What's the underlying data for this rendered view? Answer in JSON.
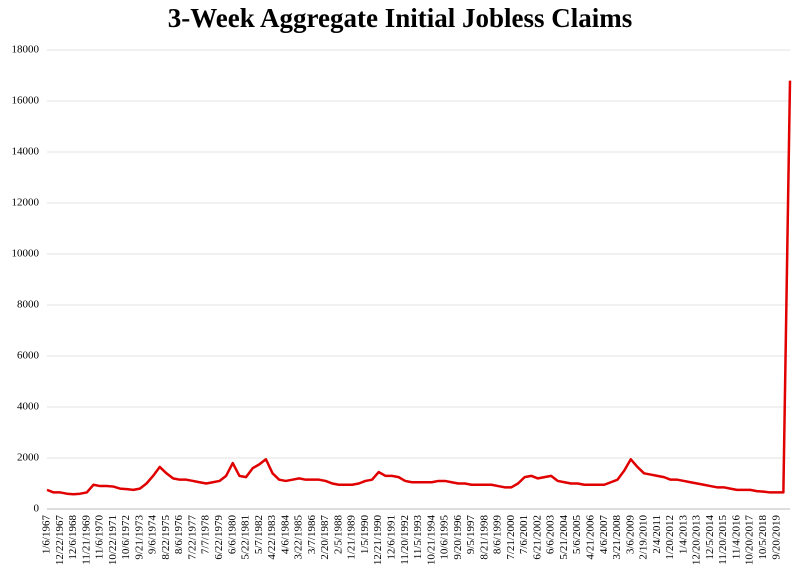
{
  "chart_data": {
    "type": "line",
    "title": "3-Week Aggregate Initial Jobless Claims",
    "categories": [
      "1/6/1967",
      null,
      "12/22/1967",
      null,
      "12/6/1968",
      null,
      "11/21/1969",
      null,
      "11/6/1970",
      null,
      "10/22/1971",
      null,
      "10/6/1972",
      null,
      "9/21/1973",
      null,
      "9/6/1974",
      null,
      "8/22/1975",
      null,
      "8/6/1976",
      null,
      "7/22/1977",
      null,
      "7/7/1978",
      null,
      "6/22/1979",
      null,
      "6/6/1980",
      null,
      "5/22/1981",
      null,
      "5/7/1982",
      null,
      "4/22/1983",
      null,
      "4/6/1984",
      null,
      "3/22/1985",
      null,
      "3/7/1986",
      null,
      "2/20/1987",
      null,
      "2/5/1988",
      null,
      "1/21/1989",
      null,
      "1/5/1990",
      null,
      "12/21/1990",
      null,
      "12/6/1991",
      null,
      "11/20/1992",
      null,
      "11/5/1993",
      null,
      "10/21/1994",
      null,
      "10/6/1995",
      null,
      "9/20/1996",
      null,
      "9/5/1997",
      null,
      "8/21/1998",
      null,
      "8/6/1999",
      null,
      "7/21/2000",
      null,
      "7/6/2001",
      null,
      "6/21/2002",
      null,
      "6/6/2003",
      null,
      "5/21/2004",
      null,
      "5/6/2005",
      null,
      "4/21/2006",
      null,
      "4/6/2007",
      null,
      "3/21/2008",
      null,
      "3/6/2009",
      null,
      "2/19/2010",
      null,
      "2/4/2011",
      null,
      "1/20/2012",
      null,
      "1/4/2013",
      null,
      "12/20/2013",
      null,
      "12/5/2014",
      null,
      "11/20/2015",
      null,
      "11/4/2016",
      null,
      "10/20/2017",
      null,
      "10/5/2018",
      null,
      "9/20/2019",
      null,
      null
    ],
    "series": [
      {
        "name": "3-Week Aggregate Initial Jobless Claims",
        "color": "#e00000",
        "values": [
          750,
          650,
          650,
          600,
          580,
          600,
          650,
          950,
          900,
          900,
          880,
          800,
          780,
          750,
          800,
          1000,
          1300,
          1650,
          1400,
          1200,
          1150,
          1150,
          1100,
          1050,
          1000,
          1050,
          1100,
          1300,
          1800,
          1300,
          1250,
          1600,
          1750,
          1950,
          1400,
          1150,
          1100,
          1150,
          1200,
          1150,
          1150,
          1150,
          1100,
          1000,
          950,
          950,
          950,
          1000,
          1100,
          1150,
          1450,
          1300,
          1300,
          1250,
          1100,
          1050,
          1050,
          1050,
          1050,
          1100,
          1100,
          1050,
          1000,
          1000,
          950,
          950,
          950,
          950,
          900,
          850,
          850,
          1000,
          1250,
          1300,
          1200,
          1250,
          1300,
          1100,
          1050,
          1000,
          1000,
          950,
          950,
          950,
          950,
          1050,
          1150,
          1500,
          1950,
          1650,
          1400,
          1350,
          1300,
          1250,
          1150,
          1150,
          1100,
          1050,
          1000,
          950,
          900,
          850,
          850,
          800,
          750,
          750,
          750,
          700,
          680,
          650,
          650,
          650,
          16800
        ]
      }
    ],
    "ylim": [
      0,
      18000
    ],
    "yticks": [
      0,
      2000,
      4000,
      6000,
      8000,
      10000,
      12000,
      14000,
      16000,
      18000
    ],
    "grid": true
  }
}
